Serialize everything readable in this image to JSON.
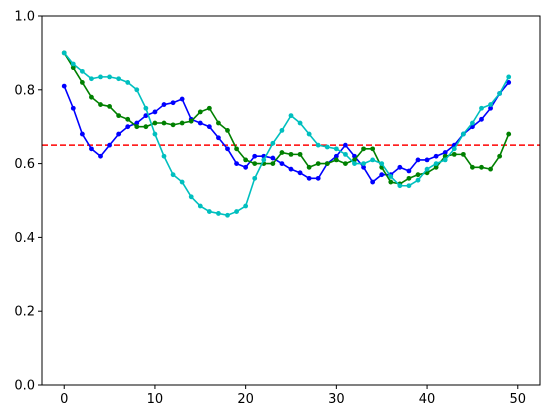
{
  "chart_data": {
    "type": "line",
    "title": "",
    "xlabel": "",
    "ylabel": "",
    "xlim": [
      -2.45,
      52.45
    ],
    "ylim": [
      0.0,
      1.0
    ],
    "xticks": [
      0,
      10,
      20,
      30,
      40,
      50
    ],
    "xtick_labels": [
      "0",
      "10",
      "20",
      "30",
      "40",
      "50"
    ],
    "yticks": [
      0.0,
      0.2,
      0.4,
      0.6,
      0.8,
      1.0
    ],
    "ytick_labels": [
      "0.0",
      "0.2",
      "0.4",
      "0.6",
      "0.8",
      "1.0"
    ],
    "grid": false,
    "legend": false,
    "reference_line": {
      "y": 0.65,
      "color": "#ff0000",
      "style": "dashed"
    },
    "x": [
      0,
      1,
      2,
      3,
      4,
      5,
      6,
      7,
      8,
      9,
      10,
      11,
      12,
      13,
      14,
      15,
      16,
      17,
      18,
      19,
      20,
      21,
      22,
      23,
      24,
      25,
      26,
      27,
      28,
      29,
      30,
      31,
      32,
      33,
      34,
      35,
      36,
      37,
      38,
      39,
      40,
      41,
      42,
      43,
      44,
      45,
      46,
      47,
      48,
      49
    ],
    "series": [
      {
        "color": "#0000ff",
        "values": [
          0.81,
          0.75,
          0.68,
          0.64,
          0.62,
          0.65,
          0.68,
          0.7,
          0.71,
          0.73,
          0.74,
          0.76,
          0.765,
          0.775,
          0.72,
          0.71,
          0.7,
          0.67,
          0.64,
          0.6,
          0.59,
          0.62,
          0.62,
          0.615,
          0.6,
          0.585,
          0.575,
          0.56,
          0.56,
          0.6,
          0.62,
          0.65,
          0.62,
          0.59,
          0.55,
          0.57,
          0.57,
          0.59,
          0.58,
          0.61,
          0.61,
          0.62,
          0.63,
          0.65,
          0.68,
          0.7,
          0.72,
          0.75,
          0.79,
          0.82
        ]
      },
      {
        "color": "#008000",
        "values": [
          0.9,
          0.86,
          0.82,
          0.78,
          0.76,
          0.755,
          0.73,
          0.72,
          0.7,
          0.7,
          0.71,
          0.71,
          0.705,
          0.71,
          0.715,
          0.74,
          0.75,
          0.71,
          0.69,
          0.64,
          0.61,
          0.6,
          0.6,
          0.6,
          0.63,
          0.625,
          0.625,
          0.59,
          0.6,
          0.6,
          0.61,
          0.6,
          0.61,
          0.64,
          0.64,
          0.59,
          0.55,
          0.545,
          0.56,
          0.57,
          0.575,
          0.59,
          0.62,
          0.625,
          0.625,
          0.59,
          0.59,
          0.585,
          0.62,
          0.68
        ]
      },
      {
        "color": "#00bfbf",
        "values": [
          0.9,
          0.87,
          0.85,
          0.83,
          0.835,
          0.835,
          0.83,
          0.82,
          0.8,
          0.75,
          0.68,
          0.62,
          0.57,
          0.55,
          0.51,
          0.485,
          0.47,
          0.465,
          0.46,
          0.47,
          0.485,
          0.56,
          0.61,
          0.655,
          0.69,
          0.73,
          0.71,
          0.68,
          0.65,
          0.645,
          0.64,
          0.625,
          0.6,
          0.6,
          0.61,
          0.6,
          0.565,
          0.54,
          0.54,
          0.555,
          0.585,
          0.6,
          0.61,
          0.64,
          0.68,
          0.71,
          0.75,
          0.76,
          0.79,
          0.835
        ]
      }
    ]
  }
}
